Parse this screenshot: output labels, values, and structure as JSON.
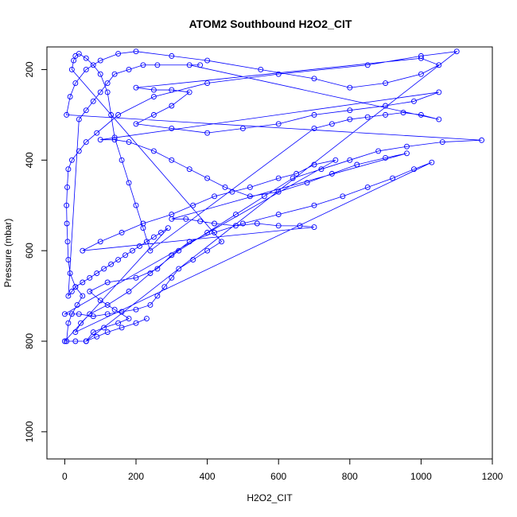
{
  "chart_data": {
    "type": "scatter",
    "title": "ATOM2 Southbound H2O2_CIT",
    "xlabel": "H2O2_CIT",
    "ylabel": "Pressure (mbar)",
    "xlim": [
      -50,
      1200
    ],
    "ylim": [
      1060,
      150
    ],
    "y_reversed": true,
    "x_ticks": [
      0,
      200,
      400,
      600,
      800,
      1000,
      1200
    ],
    "y_ticks": [
      200,
      400,
      600,
      800,
      1000
    ],
    "grid": false,
    "legend": "none",
    "marker": "open-circle",
    "connected": true,
    "series": [
      {
        "color": "#0000ff",
        "points": [
          [
            5,
            800
          ],
          [
            10,
            760
          ],
          [
            20,
            740
          ],
          [
            35,
            720
          ],
          [
            50,
            700
          ],
          [
            30,
            680
          ],
          [
            15,
            650
          ],
          [
            10,
            620
          ],
          [
            8,
            580
          ],
          [
            6,
            540
          ],
          [
            5,
            500
          ],
          [
            7,
            460
          ],
          [
            10,
            420
          ],
          [
            20,
            400
          ],
          [
            40,
            380
          ],
          [
            60,
            360
          ],
          [
            90,
            340
          ],
          [
            150,
            300
          ],
          [
            250,
            260
          ],
          [
            400,
            230
          ],
          [
            600,
            210
          ],
          [
            850,
            190
          ],
          [
            1000,
            170
          ],
          [
            1100,
            160
          ],
          [
            60,
            800
          ],
          [
            80,
            780
          ],
          [
            110,
            770
          ],
          [
            150,
            760
          ],
          [
            180,
            750
          ],
          [
            140,
            730
          ],
          [
            100,
            710
          ],
          [
            70,
            690
          ],
          [
            120,
            670
          ],
          [
            200,
            660
          ],
          [
            260,
            640
          ],
          [
            300,
            610
          ],
          [
            350,
            580
          ],
          [
            420,
            560
          ],
          [
            500,
            540
          ],
          [
            600,
            520
          ],
          [
            700,
            500
          ],
          [
            780,
            480
          ],
          [
            850,
            460
          ],
          [
            920,
            440
          ],
          [
            980,
            420
          ],
          [
            1030,
            405
          ],
          [
            30,
            780
          ],
          [
            45,
            760
          ],
          [
            70,
            740
          ],
          [
            120,
            720
          ],
          [
            180,
            690
          ],
          [
            240,
            650
          ],
          [
            320,
            600
          ],
          [
            400,
            560
          ],
          [
            480,
            520
          ],
          [
            560,
            480
          ],
          [
            640,
            440
          ],
          [
            720,
            420
          ],
          [
            800,
            400
          ],
          [
            880,
            380
          ],
          [
            960,
            370
          ],
          [
            1060,
            360
          ],
          [
            1170,
            356
          ],
          [
            5,
            300
          ],
          [
            15,
            260
          ],
          [
            30,
            230
          ],
          [
            60,
            200
          ],
          [
            100,
            180
          ],
          [
            150,
            165
          ],
          [
            200,
            160
          ],
          [
            300,
            170
          ],
          [
            400,
            180
          ],
          [
            550,
            200
          ],
          [
            700,
            220
          ],
          [
            800,
            240
          ],
          [
            900,
            230
          ],
          [
            1000,
            210
          ],
          [
            1050,
            190
          ],
          [
            1000,
            175
          ],
          [
            200,
            240
          ],
          [
            250,
            245
          ],
          [
            300,
            245
          ],
          [
            350,
            250
          ],
          [
            300,
            280
          ],
          [
            250,
            300
          ],
          [
            200,
            320
          ],
          [
            300,
            330
          ],
          [
            400,
            340
          ],
          [
            500,
            330
          ],
          [
            600,
            320
          ],
          [
            700,
            300
          ],
          [
            800,
            290
          ],
          [
            900,
            280
          ],
          [
            980,
            270
          ],
          [
            1050,
            250
          ],
          [
            100,
            355
          ],
          [
            140,
            355
          ],
          [
            180,
            360
          ],
          [
            250,
            380
          ],
          [
            300,
            400
          ],
          [
            350,
            420
          ],
          [
            400,
            440
          ],
          [
            450,
            460
          ],
          [
            520,
            480
          ],
          [
            600,
            470
          ],
          [
            680,
            450
          ],
          [
            750,
            430
          ],
          [
            820,
            410
          ],
          [
            900,
            395
          ],
          [
            960,
            385
          ],
          [
            300,
            530
          ],
          [
            340,
            530
          ],
          [
            380,
            535
          ],
          [
            420,
            540
          ],
          [
            480,
            545
          ],
          [
            540,
            540
          ],
          [
            600,
            545
          ],
          [
            660,
            545
          ],
          [
            700,
            548
          ],
          [
            50,
            600
          ],
          [
            100,
            580
          ],
          [
            160,
            560
          ],
          [
            220,
            540
          ],
          [
            300,
            520
          ],
          [
            360,
            500
          ],
          [
            420,
            480
          ],
          [
            470,
            470
          ],
          [
            520,
            460
          ],
          [
            600,
            440
          ],
          [
            650,
            430
          ],
          [
            700,
            410
          ],
          [
            760,
            400
          ],
          [
            0,
            740
          ],
          [
            40,
            740
          ],
          [
            80,
            745
          ],
          [
            120,
            740
          ],
          [
            160,
            735
          ],
          [
            200,
            730
          ],
          [
            240,
            720
          ],
          [
            260,
            700
          ],
          [
            280,
            680
          ],
          [
            300,
            660
          ],
          [
            320,
            640
          ],
          [
            360,
            620
          ],
          [
            400,
            600
          ],
          [
            440,
            580
          ],
          [
            20,
            200
          ],
          [
            25,
            180
          ],
          [
            30,
            170
          ],
          [
            40,
            165
          ],
          [
            60,
            175
          ],
          [
            80,
            190
          ],
          [
            100,
            210
          ],
          [
            120,
            250
          ],
          [
            130,
            300
          ],
          [
            140,
            350
          ],
          [
            160,
            400
          ],
          [
            180,
            450
          ],
          [
            200,
            500
          ],
          [
            220,
            550
          ],
          [
            240,
            600
          ],
          [
            700,
            330
          ],
          [
            750,
            320
          ],
          [
            800,
            310
          ],
          [
            850,
            305
          ],
          [
            900,
            300
          ],
          [
            950,
            295
          ],
          [
            1000,
            300
          ],
          [
            1050,
            310
          ],
          [
            350,
            190
          ],
          [
            380,
            190
          ],
          [
            260,
            190
          ],
          [
            220,
            190
          ],
          [
            180,
            200
          ],
          [
            140,
            210
          ],
          [
            120,
            230
          ],
          [
            100,
            250
          ],
          [
            80,
            270
          ],
          [
            60,
            290
          ],
          [
            40,
            310
          ],
          [
            10,
            700
          ],
          [
            20,
            690
          ],
          [
            30,
            680
          ],
          [
            50,
            670
          ],
          [
            70,
            660
          ],
          [
            90,
            650
          ],
          [
            110,
            640
          ],
          [
            130,
            630
          ],
          [
            150,
            620
          ],
          [
            170,
            610
          ],
          [
            190,
            600
          ],
          [
            210,
            590
          ],
          [
            230,
            580
          ],
          [
            250,
            570
          ],
          [
            270,
            560
          ],
          [
            290,
            550
          ],
          [
            0,
            800
          ],
          [
            30,
            800
          ],
          [
            60,
            800
          ],
          [
            90,
            790
          ],
          [
            120,
            780
          ],
          [
            160,
            770
          ],
          [
            200,
            760
          ],
          [
            230,
            750
          ]
        ]
      }
    ]
  }
}
